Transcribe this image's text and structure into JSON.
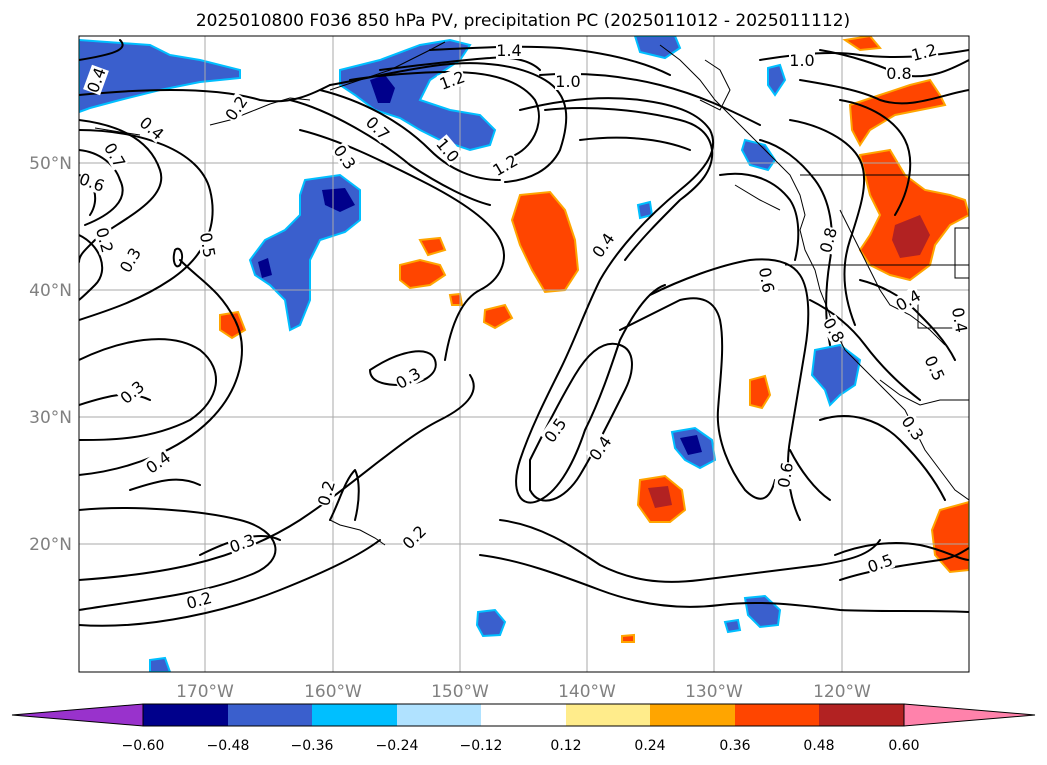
{
  "title": "2025010800 F036 850 hPa PV, precipitation PC (2025011012 - 2025011112)",
  "map": {
    "lon_labels": [
      "170°W",
      "160°W",
      "150°W",
      "140°W",
      "130°W",
      "120°W"
    ],
    "lat_labels": [
      "50°N",
      "40°N",
      "30°N",
      "20°N"
    ],
    "grid": true
  },
  "colorbar": {
    "ticks": [
      "−0.60",
      "−0.48",
      "−0.36",
      "−0.24",
      "−0.12",
      "0.12",
      "0.24",
      "0.36",
      "0.48",
      "0.60"
    ],
    "colors": [
      "#9932cc",
      "#00008b",
      "#3a5fcd",
      "#00bfff",
      "#b0e2ff",
      "#ffffff",
      "#ffec8b",
      "#ffa500",
      "#ff4500",
      "#b22222",
      "#ff82ab"
    ],
    "extend": "both"
  },
  "contour_labels": {
    "l_0_4_a": "0.4",
    "l_0_2_a": "0.2",
    "l_0_3_a": "0.3",
    "l_0_7_a": "0.7",
    "l_1_0_a": "1.0",
    "l_1_2_a": "1.2",
    "l_1_4": "1.4",
    "l_1_0_b": "1.0",
    "l_1_2_b": "1.2",
    "l_0_7_b": "0.7",
    "l_0_6_a": "0.6",
    "l_0_2_b": "0.2",
    "l_0_3_b": "0.3",
    "l_0_5_a": "0.5",
    "l_1_0_c": "1.0",
    "l_0_8_a": "0.8",
    "l_1_2_c": "1.2",
    "l_0_4_b": "0.4",
    "l_0_8_b": "0.8",
    "l_0_6_b": "0.6",
    "l_0_8_c": "0.8",
    "l_0_4_c": "0.4",
    "l_0_4_d": "0.4",
    "l_0_5_b": "0.5",
    "l_0_3_c": "0.3",
    "l_0_3_d": "0.3",
    "l_0_4_e": "0.4",
    "l_0_5_c": "0.5",
    "l_0_4_f": "0.4",
    "l_0_6_c": "0.6",
    "l_0_2_c": "0.2",
    "l_0_3_e": "0.3",
    "l_0_2_d": "0.2",
    "l_0_2_e": "0.2",
    "l_0_5_d": "0.5",
    "l_0_6_d": "0.6"
  }
}
